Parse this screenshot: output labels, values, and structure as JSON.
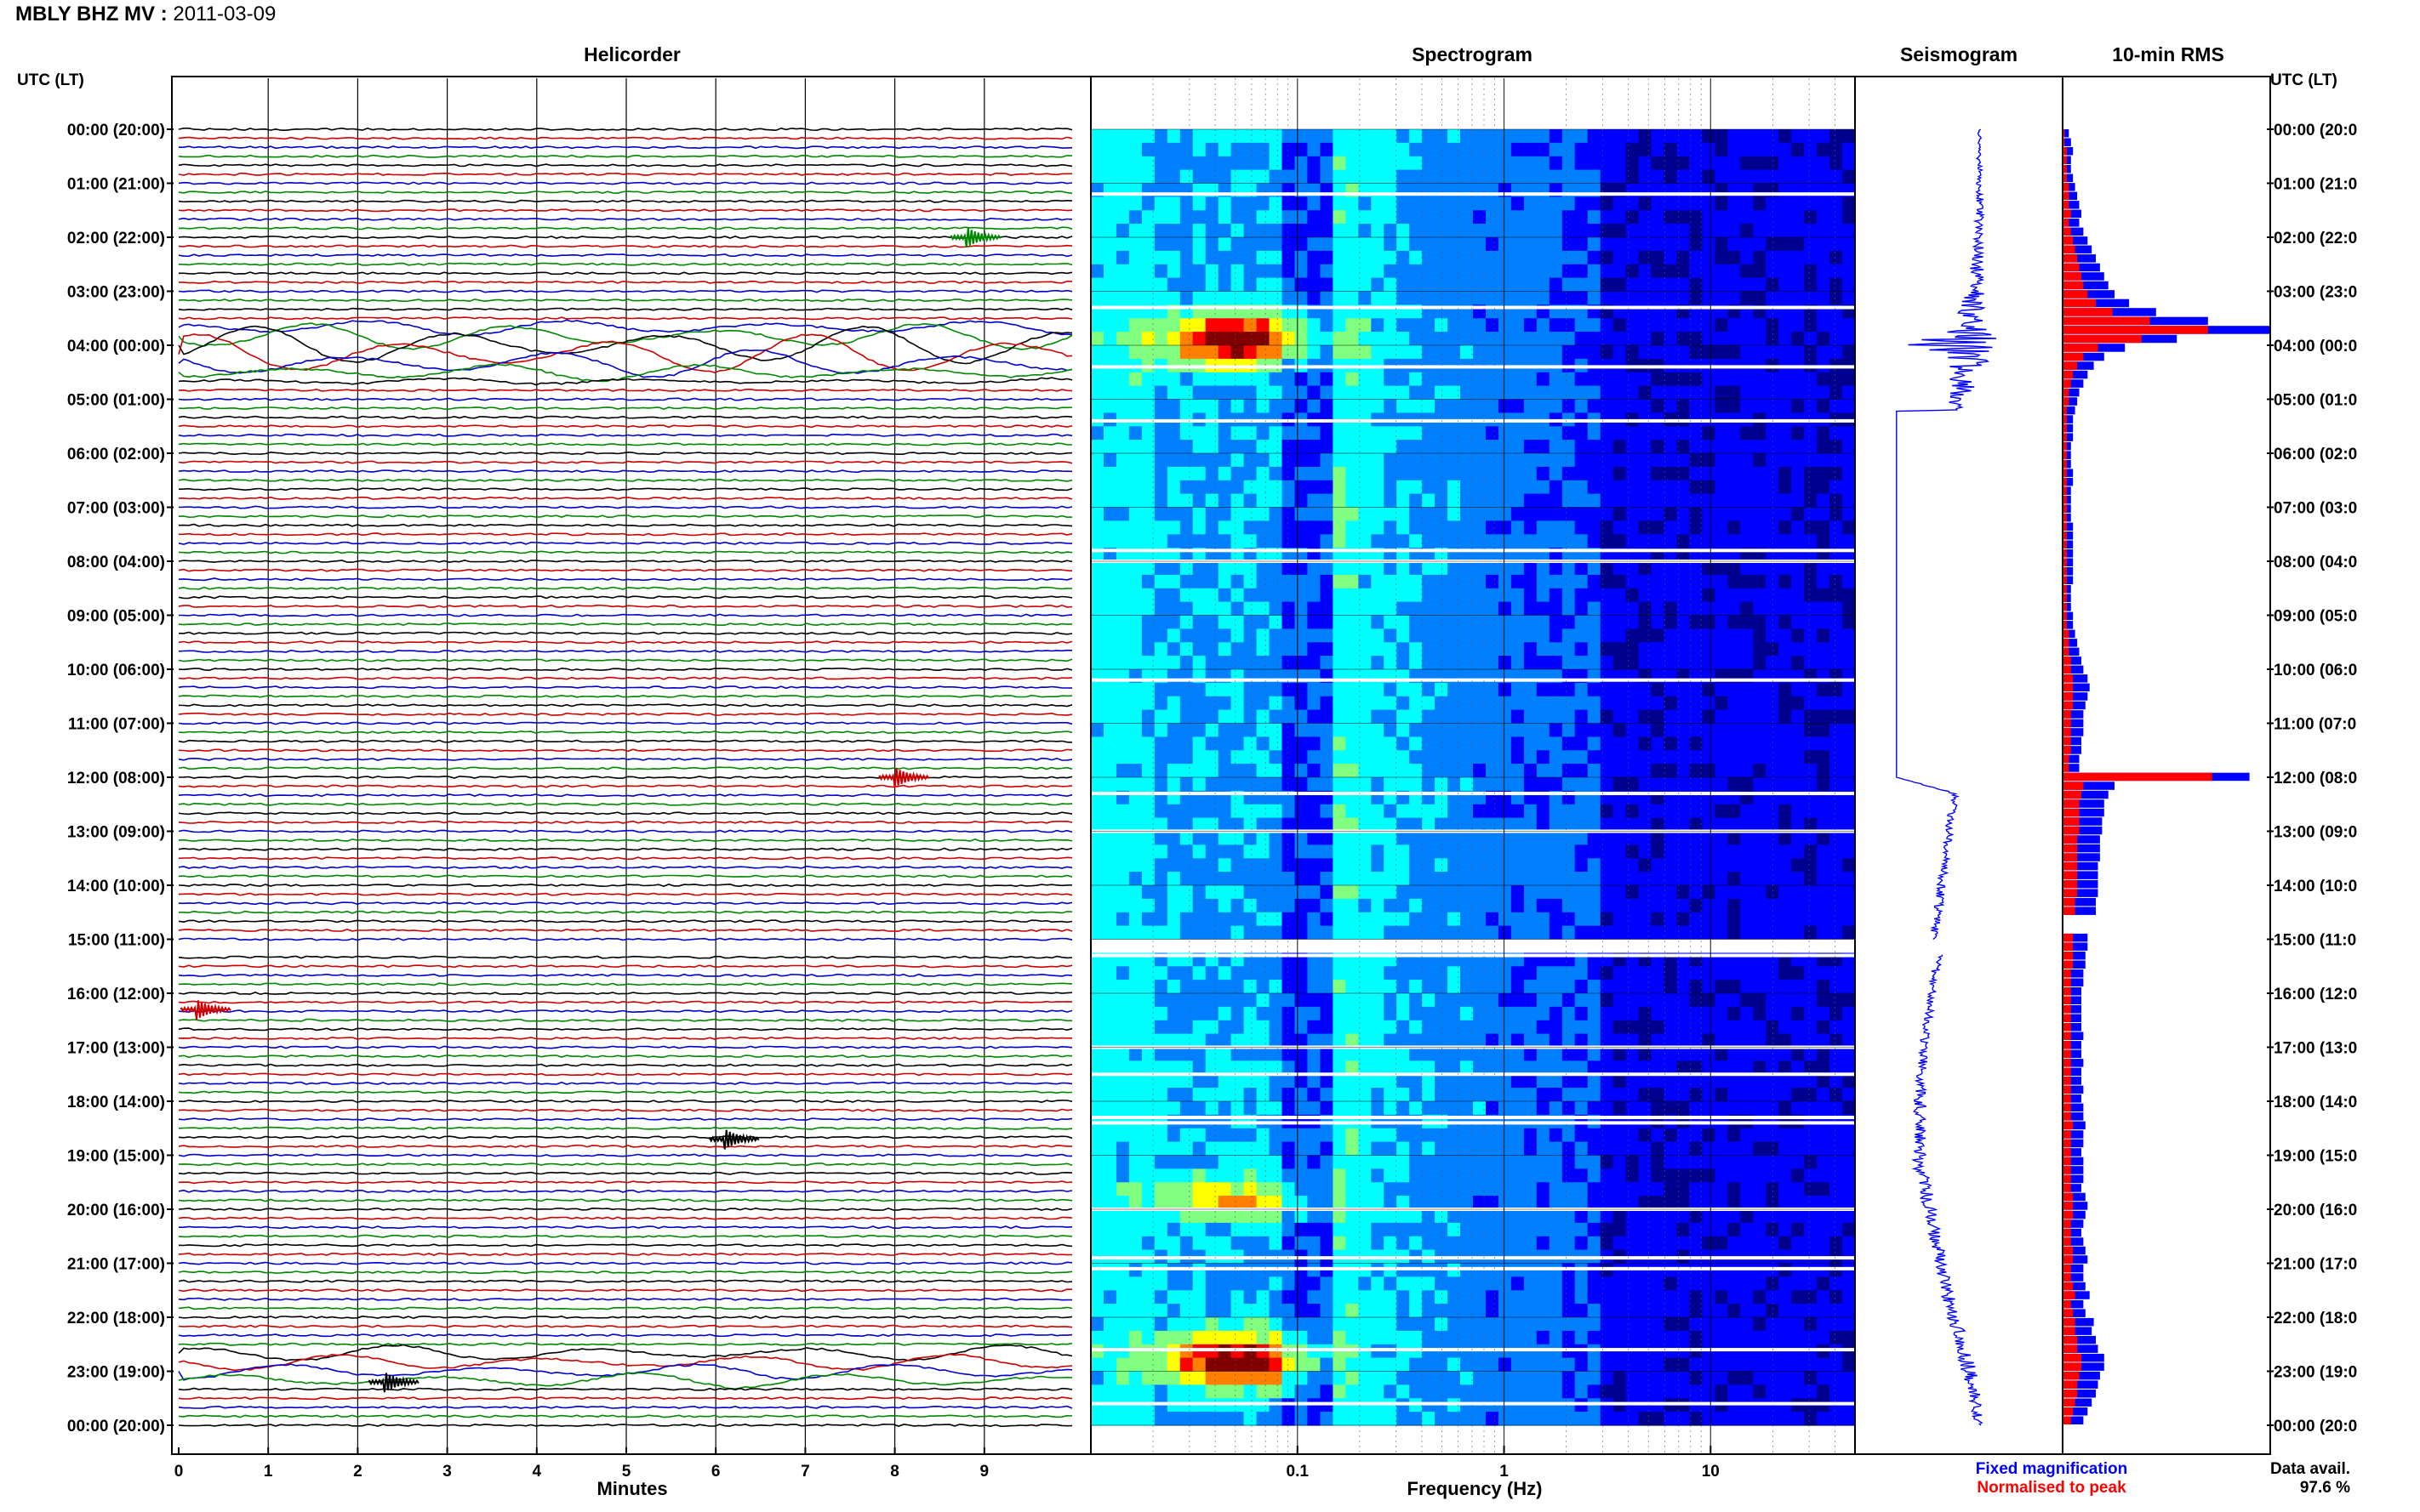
{
  "figure": {
    "title_station": "MBLY BHZ MV",
    "title_date": "2011-03-09",
    "title_sep": " : ",
    "time_axis_label": "UTC (LT)",
    "time_labels": [
      "00:00 (20:00)",
      "01:00 (21:00)",
      "02:00 (22:00)",
      "03:00 (23:00)",
      "04:00 (00:00)",
      "05:00 (01:00)",
      "06:00 (02:00)",
      "07:00 (03:00)",
      "08:00 (04:00)",
      "09:00 (05:00)",
      "10:00 (06:00)",
      "11:00 (07:00)",
      "12:00 (08:00)",
      "13:00 (09:00)",
      "14:00 (10:00)",
      "15:00 (11:00)",
      "16:00 (12:00)",
      "17:00 (13:00)",
      "18:00 (14:00)",
      "19:00 (15:00)",
      "20:00 (16:00)",
      "21:00 (17:00)",
      "22:00 (18:00)",
      "23:00 (19:00)",
      "00:00 (20:00)"
    ],
    "time_labels_right": [
      "00:00 (20:0",
      "01:00 (21:0",
      "02:00 (22:0",
      "03:00 (23:0",
      "04:00 (00:0",
      "05:00 (01:0",
      "06:00 (02:0",
      "07:00 (03:0",
      "08:00 (04:0",
      "09:00 (05:0",
      "10:00 (06:0",
      "11:00 (07:0",
      "12:00 (08:0",
      "13:00 (09:0",
      "14:00 (10:0",
      "15:00 (11:0",
      "16:00 (12:0",
      "17:00 (13:0",
      "18:00 (14:0",
      "19:00 (15:0",
      "20:00 (16:0",
      "21:00 (17:0",
      "22:00 (18:0",
      "23:00 (19:0",
      "00:00 (20:0"
    ]
  },
  "chart_data": [
    {
      "type": "line",
      "panel": "helicorder",
      "title": "Helicorder",
      "xlabel": "Minutes",
      "x_ticks": [
        "0",
        "1",
        "2",
        "3",
        "4",
        "5",
        "6",
        "7",
        "8",
        "9"
      ],
      "xlim": [
        0,
        10
      ],
      "lines_per_hour": 6,
      "trace_colors": [
        "#000000",
        "#cc0000",
        "#0000cc",
        "#008800"
      ],
      "events": [
        {
          "hour": 2,
          "minute": 8.8,
          "color": "#008800"
        },
        {
          "hour": 4.0,
          "minute": 0,
          "note": "tremor band 03:40-04:40"
        },
        {
          "hour": 12.0,
          "minute": 8.0,
          "color": "#cc0000"
        },
        {
          "hour": 16.3,
          "minute": 0.2,
          "color": "#cc0000"
        },
        {
          "hour": 18.7,
          "minute": 6.1,
          "color": "#000000"
        },
        {
          "hour": 23.2,
          "minute": 2.3,
          "color": "#000000"
        }
      ]
    },
    {
      "type": "heatmap",
      "panel": "spectrogram",
      "title": "Spectrogram",
      "xlabel": "Frequency (Hz)",
      "x_scale": "log",
      "x_ticks": [
        "0.1",
        "1",
        "10"
      ],
      "xlim": [
        0.01,
        50
      ],
      "colormap": [
        "#00008f",
        "#0000ff",
        "#0080ff",
        "#00ffff",
        "#80ff80",
        "#ffff00",
        "#ff8000",
        "#ff0000",
        "#800000"
      ],
      "hot_spots": [
        {
          "hour": 3.9,
          "freq_hz": 0.05,
          "level": "high"
        },
        {
          "hour": 19.8,
          "freq_hz": 0.05,
          "level": "medium"
        },
        {
          "hour": 22.8,
          "freq_hz": 0.05,
          "level": "high"
        }
      ],
      "gaps_hours": [
        1.2,
        3.3,
        4.4,
        5.4,
        7.8,
        8.0,
        10.2,
        12.3,
        13.0,
        15.2,
        15.3,
        17.0,
        17.5,
        18.3,
        18.4,
        20.0,
        20.9,
        21.1,
        22.6,
        23.6
      ]
    },
    {
      "type": "line",
      "panel": "seismogram",
      "title": "Seismogram",
      "y_hours": [
        0,
        1.5,
        3,
        3.7,
        4.0,
        4.3,
        5.2,
        5.2,
        12.0,
        12.3,
        15.0,
        15.3,
        17,
        19,
        20,
        21.5,
        23,
        24
      ],
      "x_offset": [
        0.6,
        0.6,
        0.58,
        0.55,
        0.5,
        0.55,
        0.48,
        0.2,
        0.2,
        0.48,
        0.38,
        0.4,
        0.33,
        0.3,
        0.36,
        0.44,
        0.55,
        0.6
      ],
      "amplitude": [
        0.01,
        0.02,
        0.04,
        0.1,
        0.32,
        0.1,
        0.03,
        0.0,
        0.0,
        0.02,
        0.02,
        0.02,
        0.02,
        0.04,
        0.03,
        0.03,
        0.04,
        0.02
      ],
      "color": "#0000ff"
    },
    {
      "type": "bar",
      "panel": "rms",
      "title": "10-min RMS",
      "orientation": "horizontal",
      "bin_minutes": 10,
      "blue_values": [
        0.03,
        0.04,
        0.05,
        0.04,
        0.04,
        0.05,
        0.06,
        0.07,
        0.08,
        0.09,
        0.08,
        0.1,
        0.12,
        0.14,
        0.16,
        0.18,
        0.2,
        0.22,
        0.25,
        0.32,
        0.45,
        0.7,
        1.0,
        0.55,
        0.3,
        0.2,
        0.15,
        0.12,
        0.1,
        0.08,
        0.07,
        0.06,
        0.05,
        0.05,
        0.05,
        0.04,
        0.04,
        0.04,
        0.05,
        0.05,
        0.04,
        0.04,
        0.04,
        0.04,
        0.05,
        0.05,
        0.05,
        0.05,
        0.05,
        0.05,
        0.05,
        0.04,
        0.04,
        0.04,
        0.05,
        0.05,
        0.06,
        0.07,
        0.08,
        0.09,
        0.1,
        0.12,
        0.13,
        0.12,
        0.11,
        0.1,
        0.1,
        0.1,
        0.09,
        0.09,
        0.08,
        0.08,
        0.9,
        0.25,
        0.22,
        0.2,
        0.2,
        0.19,
        0.19,
        0.18,
        0.18,
        0.18,
        0.17,
        0.17,
        0.17,
        0.17,
        0.16,
        0.16,
        0.0,
        0.0,
        0.12,
        0.12,
        0.11,
        0.11,
        0.1,
        0.1,
        0.09,
        0.09,
        0.09,
        0.09,
        0.09,
        0.1,
        0.09,
        0.09,
        0.1,
        0.09,
        0.09,
        0.1,
        0.09,
        0.1,
        0.1,
        0.11,
        0.1,
        0.1,
        0.09,
        0.1,
        0.1,
        0.1,
        0.09,
        0.11,
        0.12,
        0.11,
        0.1,
        0.09,
        0.1,
        0.11,
        0.12,
        0.1,
        0.1,
        0.11,
        0.13,
        0.1,
        0.11,
        0.15,
        0.14,
        0.16,
        0.17,
        0.2,
        0.2,
        0.18,
        0.17,
        0.16,
        0.14,
        0.12,
        0.1
      ],
      "red_values": [
        0.01,
        0.01,
        0.02,
        0.02,
        0.02,
        0.02,
        0.03,
        0.03,
        0.03,
        0.04,
        0.03,
        0.04,
        0.05,
        0.06,
        0.07,
        0.08,
        0.09,
        0.1,
        0.12,
        0.16,
        0.24,
        0.42,
        0.7,
        0.38,
        0.17,
        0.1,
        0.07,
        0.05,
        0.04,
        0.03,
        0.03,
        0.02,
        0.02,
        0.02,
        0.02,
        0.02,
        0.02,
        0.02,
        0.02,
        0.02,
        0.02,
        0.02,
        0.02,
        0.02,
        0.02,
        0.02,
        0.02,
        0.02,
        0.02,
        0.02,
        0.02,
        0.02,
        0.02,
        0.02,
        0.02,
        0.02,
        0.03,
        0.03,
        0.03,
        0.04,
        0.04,
        0.05,
        0.05,
        0.05,
        0.05,
        0.04,
        0.04,
        0.04,
        0.04,
        0.04,
        0.03,
        0.03,
        0.72,
        0.1,
        0.09,
        0.08,
        0.08,
        0.08,
        0.08,
        0.07,
        0.07,
        0.07,
        0.07,
        0.07,
        0.07,
        0.07,
        0.06,
        0.06,
        0.0,
        0.0,
        0.05,
        0.05,
        0.05,
        0.05,
        0.04,
        0.04,
        0.04,
        0.04,
        0.04,
        0.04,
        0.04,
        0.04,
        0.04,
        0.04,
        0.04,
        0.04,
        0.04,
        0.04,
        0.04,
        0.04,
        0.04,
        0.05,
        0.04,
        0.04,
        0.04,
        0.04,
        0.04,
        0.04,
        0.04,
        0.05,
        0.05,
        0.05,
        0.04,
        0.04,
        0.04,
        0.05,
        0.05,
        0.04,
        0.04,
        0.05,
        0.06,
        0.04,
        0.05,
        0.06,
        0.06,
        0.07,
        0.07,
        0.09,
        0.09,
        0.08,
        0.07,
        0.07,
        0.06,
        0.05,
        0.04
      ],
      "legend": {
        "blue": "Fixed magnification",
        "red": "Normalised to peak"
      },
      "legend_colors": {
        "blue": "#0000ff",
        "red": "#ff0000"
      },
      "data_availability_label": "Data avail.",
      "data_availability_value": "97.6 %"
    }
  ]
}
